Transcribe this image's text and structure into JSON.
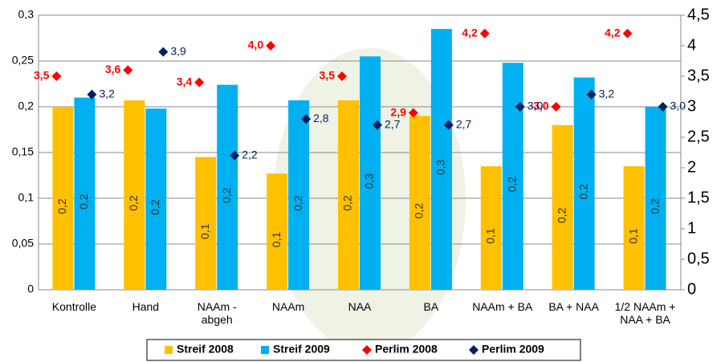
{
  "chart_data": {
    "type": "bar",
    "categories": [
      "Kontrolle",
      "Hand",
      "NAAm - abgeh",
      "NAAm",
      "NAA",
      "BA",
      "NAAm + BA",
      "BA + NAA",
      "1/2 NAAm + NAA + BA"
    ],
    "series": [
      {
        "name": "Streif 2008",
        "type": "bar",
        "color": "#ffc000",
        "values": [
          0.2,
          0.207,
          0.145,
          0.127,
          0.207,
          0.19,
          0.135,
          0.18,
          0.135
        ],
        "value_labels": [
          "0,2",
          "0,2",
          "0,1",
          "0,1",
          "0,2",
          "0,2",
          "0,1",
          "0,2",
          "0,1"
        ]
      },
      {
        "name": "Streif 2009",
        "type": "bar",
        "color": "#00b0f0",
        "values": [
          0.21,
          0.198,
          0.224,
          0.207,
          0.255,
          0.285,
          0.248,
          0.232,
          0.2
        ],
        "value_labels": [
          "0,2",
          "0,2",
          "0,2",
          "0,2",
          "0,3",
          "0,3",
          "0,2",
          "0,2",
          "0,2"
        ]
      },
      {
        "name": "Perlim 2008",
        "type": "scatter",
        "axis": "y2",
        "color": "#ff0000",
        "values": [
          3.5,
          3.6,
          3.4,
          4.0,
          3.5,
          2.9,
          4.2,
          3.0,
          4.2
        ],
        "value_labels": [
          "3,5",
          "3,6",
          "3,4",
          "4,0",
          "3,5",
          "2,9",
          "4,2",
          "3,0",
          "4,2"
        ]
      },
      {
        "name": "Perlim 2009",
        "type": "scatter",
        "axis": "y2",
        "color": "#002060",
        "values": [
          3.2,
          3.9,
          2.2,
          2.8,
          2.7,
          2.7,
          3.0,
          3.2,
          3.0
        ],
        "value_labels": [
          "3,2",
          "3,9",
          "2,2",
          "2,8",
          "2,7",
          "2,7",
          "3,0",
          "3,2",
          "3,0"
        ]
      }
    ],
    "ylim": [
      0,
      0.3
    ],
    "yticks": [
      0,
      {
        "value": 0.05,
        "label": "0,05"
      },
      {
        "value": 0.1,
        "label": "0,1"
      },
      {
        "value": 0.15,
        "label": "0,15"
      },
      {
        "value": 0.2,
        "label": "0,2"
      },
      {
        "value": 0.25,
        "label": "0,25"
      },
      {
        "value": 0.3,
        "label": "0,3"
      }
    ],
    "y2lim": [
      0,
      4.5
    ],
    "y2ticks": [
      0,
      {
        "value": 0.5,
        "label": "0,5"
      },
      1,
      {
        "value": 1.5,
        "label": "1,5"
      },
      2,
      {
        "value": 2.5,
        "label": "2,5"
      },
      3,
      {
        "value": 3.5,
        "label": "3,5"
      },
      4,
      {
        "value": 4.5,
        "label": "4,5"
      }
    ],
    "grid": true
  }
}
